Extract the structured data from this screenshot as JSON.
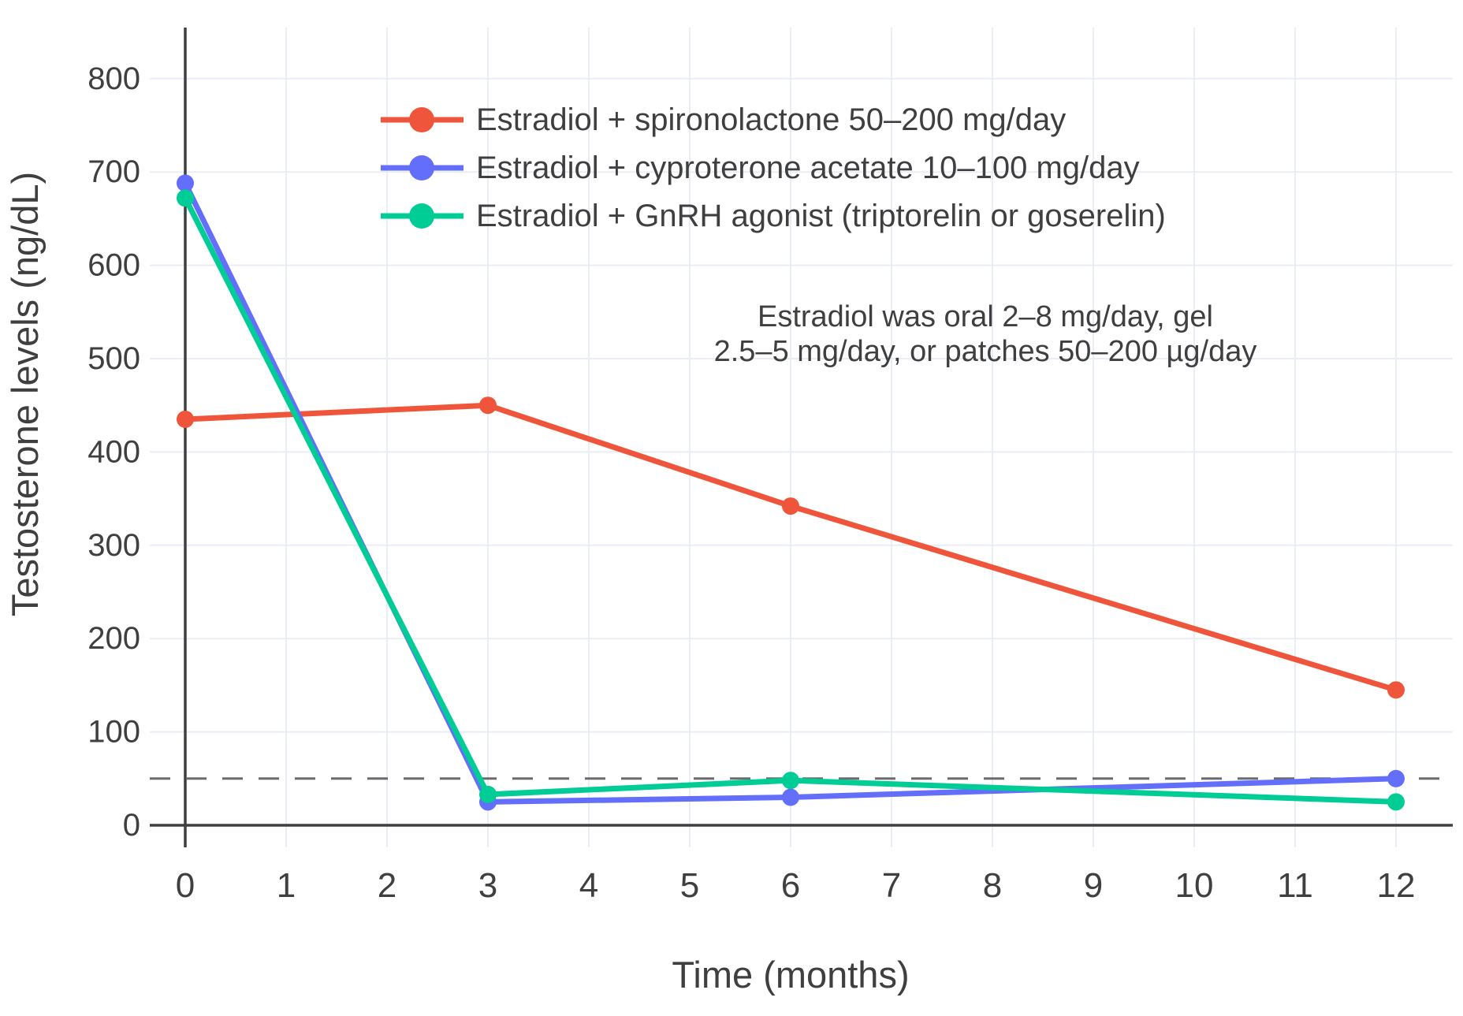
{
  "chart_data": {
    "type": "line",
    "title": "",
    "xlabel": "Time (months)",
    "ylabel": "Testosterone levels (ng/dL)",
    "x": [
      0,
      3,
      6,
      12
    ],
    "series": [
      {
        "name": "Estradiol + spironolactone 50–200 mg/day",
        "color": "#EF553B",
        "values": [
          435,
          450,
          342,
          145
        ]
      },
      {
        "name": "Estradiol + cyproterone acetate 10–100 mg/day",
        "color": "#636EFA",
        "values": [
          688,
          25,
          30,
          50
        ]
      },
      {
        "name": "Estradiol + GnRH agonist (triptorelin or goserelin)",
        "color": "#00CC96",
        "values": [
          672,
          33,
          48,
          25
        ]
      }
    ],
    "threshold": {
      "value": 50,
      "style": "dashed",
      "color": "#6b6b6b"
    },
    "annotation": {
      "line1": "Estradiol was oral 2–8 mg/day, gel",
      "line2": "2.5–5 mg/day, or patches 50–200 µg/day"
    },
    "x_ticks": [
      0,
      1,
      2,
      3,
      4,
      5,
      6,
      7,
      8,
      9,
      10,
      11,
      12
    ],
    "y_ticks": [
      0,
      100,
      200,
      300,
      400,
      500,
      600,
      700,
      800
    ],
    "xlim": [
      -0.35,
      12.56
    ],
    "ylim": [
      -23,
      855
    ],
    "grid": true,
    "legend_position": "top-left-inside",
    "colors": {
      "grid": "#E9EDF5",
      "zeroline": "#3f3f3f",
      "text": "#3f3f3f",
      "background": "#ffffff"
    }
  }
}
